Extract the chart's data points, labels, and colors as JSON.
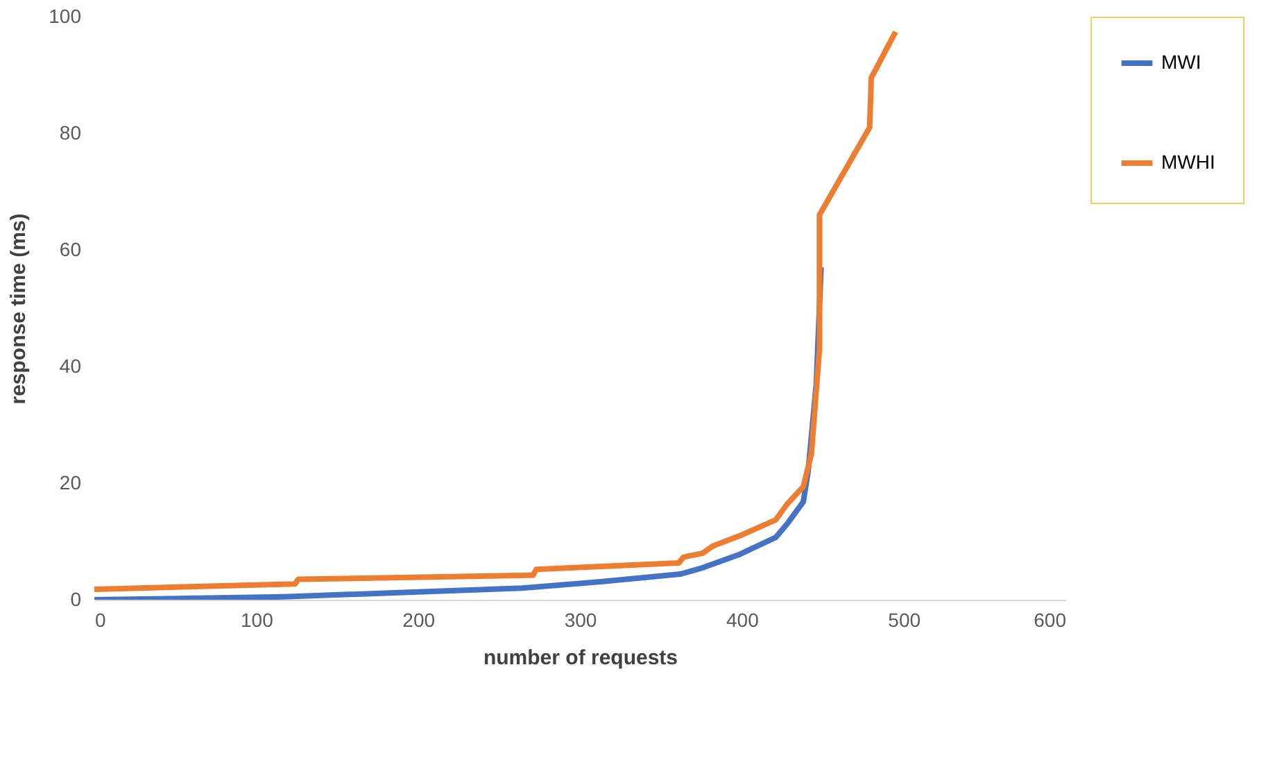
{
  "chart_data": {
    "type": "line",
    "xlabel": "number of requests",
    "ylabel": "response time (ms)",
    "xlim": [
      0,
      600
    ],
    "xticks": [
      0,
      100,
      200,
      300,
      400,
      500,
      600
    ],
    "ylim": [
      0,
      100
    ],
    "yticks": [
      0,
      20,
      40,
      60,
      80,
      100
    ],
    "grid": false,
    "legend": "right",
    "marker": "none",
    "line_style": "solid",
    "series": [
      {
        "name": "MWI",
        "color": "#4472c4",
        "x": [
          0,
          117,
          264,
          313,
          362,
          376,
          398,
          421,
          428,
          438,
          441,
          446,
          449
        ],
        "values": [
          0,
          0.5,
          2,
          3.1,
          4.4,
          5.5,
          7.7,
          10.7,
          13,
          16.8,
          22,
          37,
          57
        ]
      },
      {
        "name": "MWHI",
        "color": "#ed7d31",
        "x": [
          0,
          124,
          126,
          271,
          273,
          361,
          364,
          376,
          382,
          399,
          421,
          428,
          438,
          443,
          448,
          448,
          479,
          480,
          495
        ],
        "values": [
          1.8,
          2.7,
          3.5,
          4.2,
          5.2,
          6.3,
          7.3,
          8,
          9.2,
          11,
          13.7,
          16.4,
          19.4,
          25,
          43,
          66,
          81,
          89.5,
          97.4
        ]
      }
    ]
  }
}
